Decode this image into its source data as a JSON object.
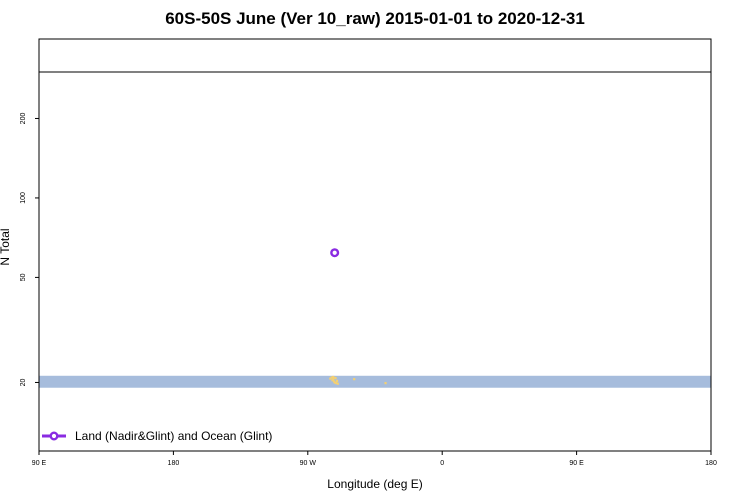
{
  "chart_data": {
    "type": "scatter",
    "title": "60S-50S June (Ver 10_raw)   2015-01-01 to 2020-12-31",
    "xlabel": "Longitude (deg E)",
    "ylabel": "N Total",
    "x_ticks": [
      {
        "value": 90,
        "label": "90 E"
      },
      {
        "value": 180,
        "label": "180"
      },
      {
        "value": 270,
        "label": "90 W"
      },
      {
        "value": 360,
        "label": "0"
      },
      {
        "value": 450,
        "label": "90 E"
      },
      {
        "value": 540,
        "label": "180"
      }
    ],
    "xlim": [
      90,
      540
    ],
    "y_scale": "log",
    "ylim": [
      11,
      400
    ],
    "y_ticks": [
      20,
      50,
      100,
      200
    ],
    "reference_line_y": 300,
    "series": [
      {
        "name": "Land (Nadir&Glint) and Ocean (Glint)",
        "color": "#8a2be2",
        "points": [
          {
            "x": 288,
            "y": 62
          }
        ]
      }
    ],
    "land_band": {
      "lat_range": "60S-50S",
      "y_range": [
        19.1,
        21.2
      ],
      "color": "#a6bcdc",
      "land_color": "#f4d070",
      "land_points": [
        {
          "x": 285,
          "y": 20.7
        },
        {
          "x": 286,
          "y": 20.9
        },
        {
          "x": 286.5,
          "y": 20.4
        },
        {
          "x": 287,
          "y": 20.6
        },
        {
          "x": 287.5,
          "y": 20.2
        },
        {
          "x": 288,
          "y": 20.0
        },
        {
          "x": 289,
          "y": 19.9
        },
        {
          "x": 290,
          "y": 19.8
        },
        {
          "x": 288.5,
          "y": 20.8
        },
        {
          "x": 287,
          "y": 21.0
        },
        {
          "x": 289.5,
          "y": 20.3
        },
        {
          "x": 301,
          "y": 20.6
        },
        {
          "x": 322,
          "y": 19.9
        }
      ]
    },
    "legend_position": "bottom-left",
    "grid": false
  }
}
